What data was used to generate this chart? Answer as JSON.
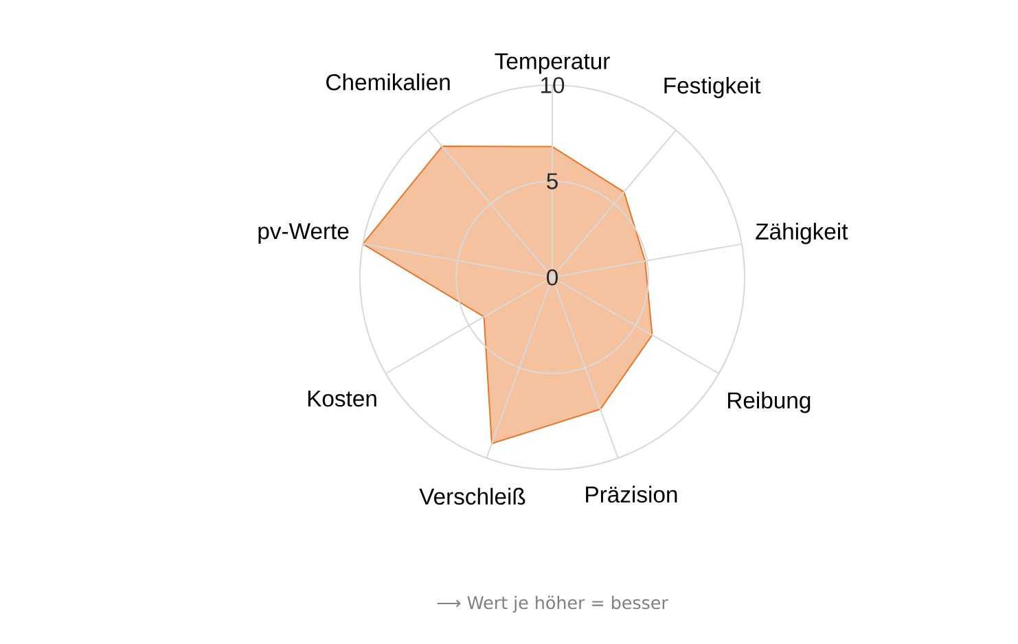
{
  "chart_data": {
    "type": "radar",
    "categories": [
      "Temperatur",
      "Festigkeit",
      "Zähigkeit",
      "Reibung",
      "Präzision",
      "Verschleiß",
      "Kosten",
      "pv-Werte",
      "Chemikalien"
    ],
    "series": [
      {
        "color": "#e8772a",
        "values": [
          6.8,
          5.8,
          4.9,
          6.0,
          7.3,
          9.2,
          4.1,
          10,
          8.9
        ]
      }
    ],
    "ylim": [
      0,
      10
    ],
    "yticks": [
      0,
      5,
      10
    ],
    "grid": true,
    "annotations": [
      "⟶ Wert je höher = besser"
    ]
  }
}
